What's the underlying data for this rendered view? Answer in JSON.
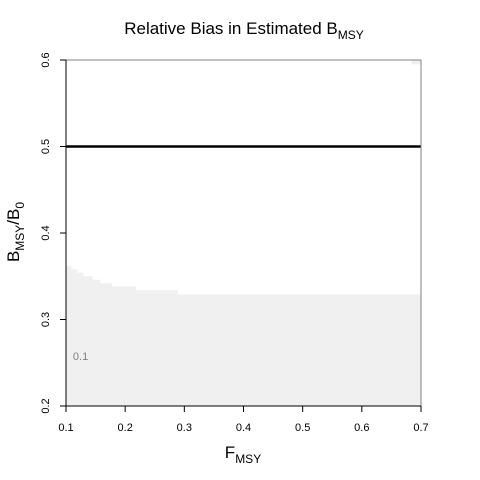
{
  "chart_data": {
    "type": "heatmap",
    "title": {
      "text": "Relative Bias in Estimated B",
      "subscript": "MSY"
    },
    "xlabel": {
      "text": "F",
      "subscript": "MSY"
    },
    "ylabel": {
      "text": "B",
      "subscript": "MSY",
      "text2": "/B",
      "subscript2": "0"
    },
    "xlim": [
      0.1,
      0.7
    ],
    "ylim": [
      0.2,
      0.6
    ],
    "x_ticks": [
      "0.1",
      "0.2",
      "0.3",
      "0.4",
      "0.5",
      "0.6",
      "0.7"
    ],
    "y_ticks": [
      "0.2",
      "0.3",
      "0.4",
      "0.5",
      "0.6"
    ],
    "reference_line": {
      "y": 0.5,
      "color": "#000000"
    },
    "contour_label": "0.1",
    "contour_label_position": {
      "x": 0.11,
      "y": 0.253
    },
    "colors": {
      "low_bias": "#f0f0f0",
      "background": "#ffffff"
    },
    "filled_region": {
      "fill": "#f0f0f0",
      "boundary": [
        {
          "x": 0.1,
          "y": 0.362
        },
        {
          "x": 0.109,
          "y": 0.358
        },
        {
          "x": 0.119,
          "y": 0.354
        },
        {
          "x": 0.129,
          "y": 0.35
        },
        {
          "x": 0.145,
          "y": 0.346
        },
        {
          "x": 0.158,
          "y": 0.342
        },
        {
          "x": 0.178,
          "y": 0.338
        },
        {
          "x": 0.218,
          "y": 0.334
        },
        {
          "x": 0.289,
          "y": 0.329
        },
        {
          "x": 0.7,
          "y": 0.329
        }
      ]
    },
    "corner_patch": {
      "x": [
        0.684,
        0.7
      ],
      "y": [
        0.595,
        0.6
      ],
      "fill": "#f0f0f0"
    }
  }
}
